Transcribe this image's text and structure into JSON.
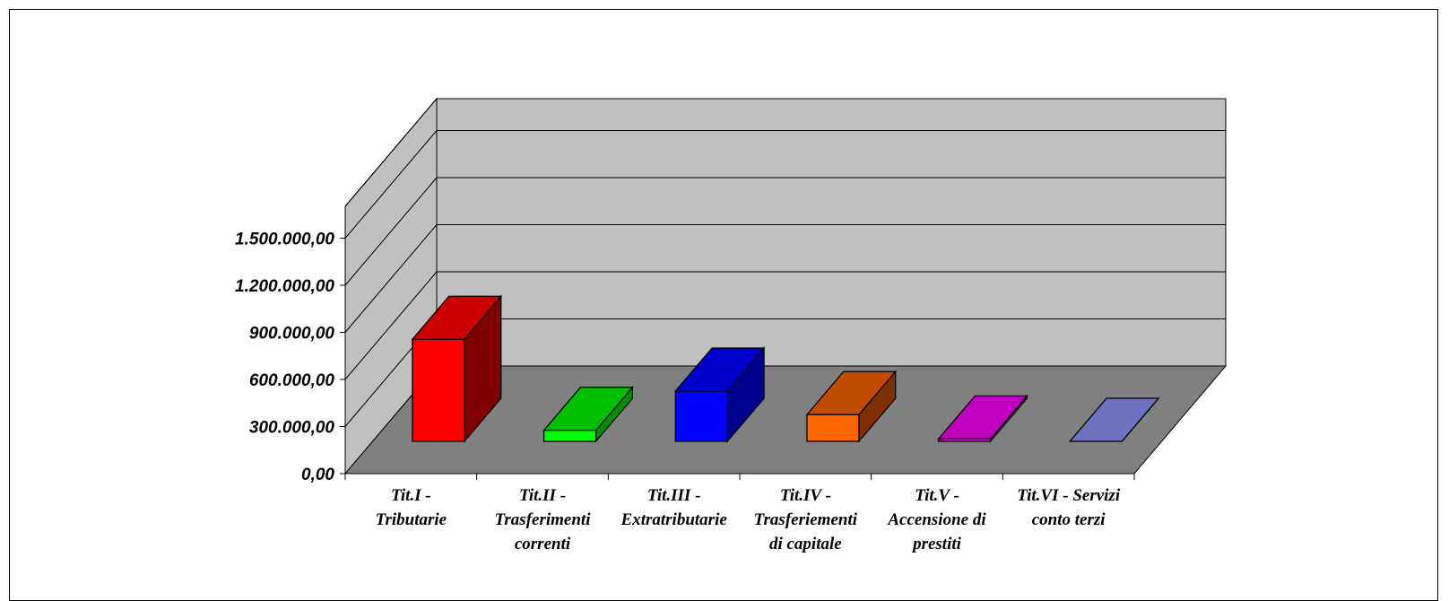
{
  "chart_data": {
    "type": "bar",
    "three_d": true,
    "title": "",
    "xlabel": "",
    "ylabel": "",
    "categories": [
      [
        "Tit.I -",
        "Tributarie"
      ],
      [
        "Tit.II -",
        "Trasferimenti",
        "correnti"
      ],
      [
        "Tit.III -",
        "Extratributarie"
      ],
      [
        "Tit.IV -",
        "Trasferiementi",
        "di capitale"
      ],
      [
        "Tit.V -",
        "Accensione di",
        "prestiti"
      ],
      [
        "Tit.VI - Servizi",
        "conto terzi"
      ]
    ],
    "values": [
      650000,
      70000,
      320000,
      170000,
      15000,
      0
    ],
    "colors": [
      {
        "front": "#FF0000",
        "top": "#CC0000",
        "side": "#800000"
      },
      {
        "front": "#00FF00",
        "top": "#00C000",
        "side": "#009000"
      },
      {
        "front": "#0000FF",
        "top": "#0000CC",
        "side": "#000090"
      },
      {
        "front": "#FF6600",
        "top": "#C04C00",
        "side": "#803000"
      },
      {
        "front": "#E000E0",
        "top": "#C000C0",
        "side": "#800080"
      },
      {
        "front": "#8080D0",
        "top": "#7070C0",
        "side": "#5050A0"
      }
    ],
    "y_ticks": [
      "0,00",
      "300.000,00",
      "600.000,00",
      "900.000,00",
      "1.200.000,00",
      "1.500.000,00"
    ],
    "ylim": [
      0,
      1500000
    ],
    "grid": true,
    "legend": "none",
    "wall_color": "#C0C0C0",
    "floor_color": "#808080"
  }
}
